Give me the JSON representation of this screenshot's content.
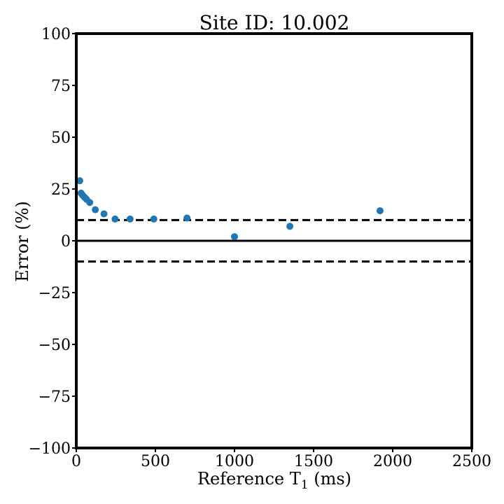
{
  "chart_data": {
    "type": "scatter",
    "title": "Site ID: 10.002",
    "xlabel": {
      "main": "Reference T",
      "sub": "1",
      "unit": " (ms)"
    },
    "ylabel": "Error (%)",
    "xlim": [
      0,
      2500
    ],
    "ylim": [
      -100,
      100
    ],
    "xticks": [
      0,
      500,
      1000,
      1500,
      2000,
      2500
    ],
    "yticks": [
      100,
      75,
      50,
      25,
      0,
      -25,
      -50,
      -75,
      -100
    ],
    "ytick_labels": [
      "100",
      "75",
      "50",
      "25",
      "0",
      "−25",
      "−50",
      "−75",
      "−100"
    ],
    "grid": false,
    "reference_lines": [
      {
        "y": 0,
        "style": "solid"
      },
      {
        "y": 10,
        "style": "dashed"
      },
      {
        "y": -10,
        "style": "dashed"
      }
    ],
    "marker_color": "#1f77b4",
    "series": [
      {
        "x": [
          22,
          30,
          40,
          52,
          65,
          85,
          120,
          175,
          245,
          340,
          490,
          700,
          1000,
          1350,
          1920
        ],
        "y": [
          29,
          23,
          22,
          21,
          20,
          18.5,
          15,
          13,
          10.5,
          10.5,
          10.5,
          11,
          2,
          7,
          14.5
        ]
      }
    ]
  }
}
